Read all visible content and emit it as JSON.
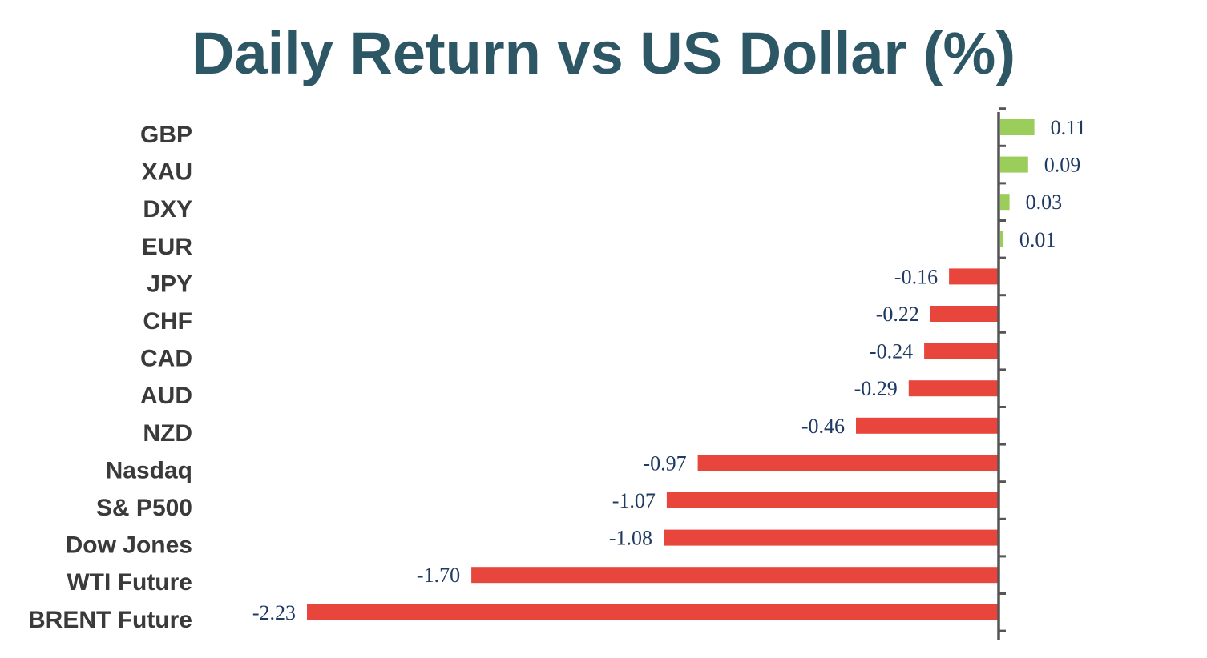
{
  "chart_data": {
    "type": "bar",
    "orientation": "horizontal",
    "title": "Daily Return vs US Dollar (%)",
    "xlabel": "",
    "ylabel": "",
    "categories": [
      "GBP",
      "XAU",
      "DXY",
      "EUR",
      "JPY",
      "CHF",
      "CAD",
      "AUD",
      "NZD",
      "Nasdaq",
      "S& P500",
      "Dow Jones",
      "WTI Future",
      "BRENT Future"
    ],
    "values": [
      0.11,
      0.09,
      0.03,
      0.01,
      -0.16,
      -0.22,
      -0.24,
      -0.29,
      -0.46,
      -0.97,
      -1.07,
      -1.08,
      -1.7,
      -2.23
    ],
    "value_labels": [
      "0.11",
      "0.09",
      "0.03",
      "0.01",
      "-0.16",
      "-0.22",
      "-0.24",
      "-0.29",
      "-0.46",
      "-0.97",
      "-1.07",
      "-1.08",
      "-1.70",
      "-2.23"
    ],
    "colors": {
      "positive": "#9acd5a",
      "negative": "#e8453c",
      "axis": "#555555",
      "title": "#2e5766",
      "category_text": "#3a3a3a",
      "value_text": "#1f3a63"
    },
    "grid": false,
    "legend": "none"
  }
}
